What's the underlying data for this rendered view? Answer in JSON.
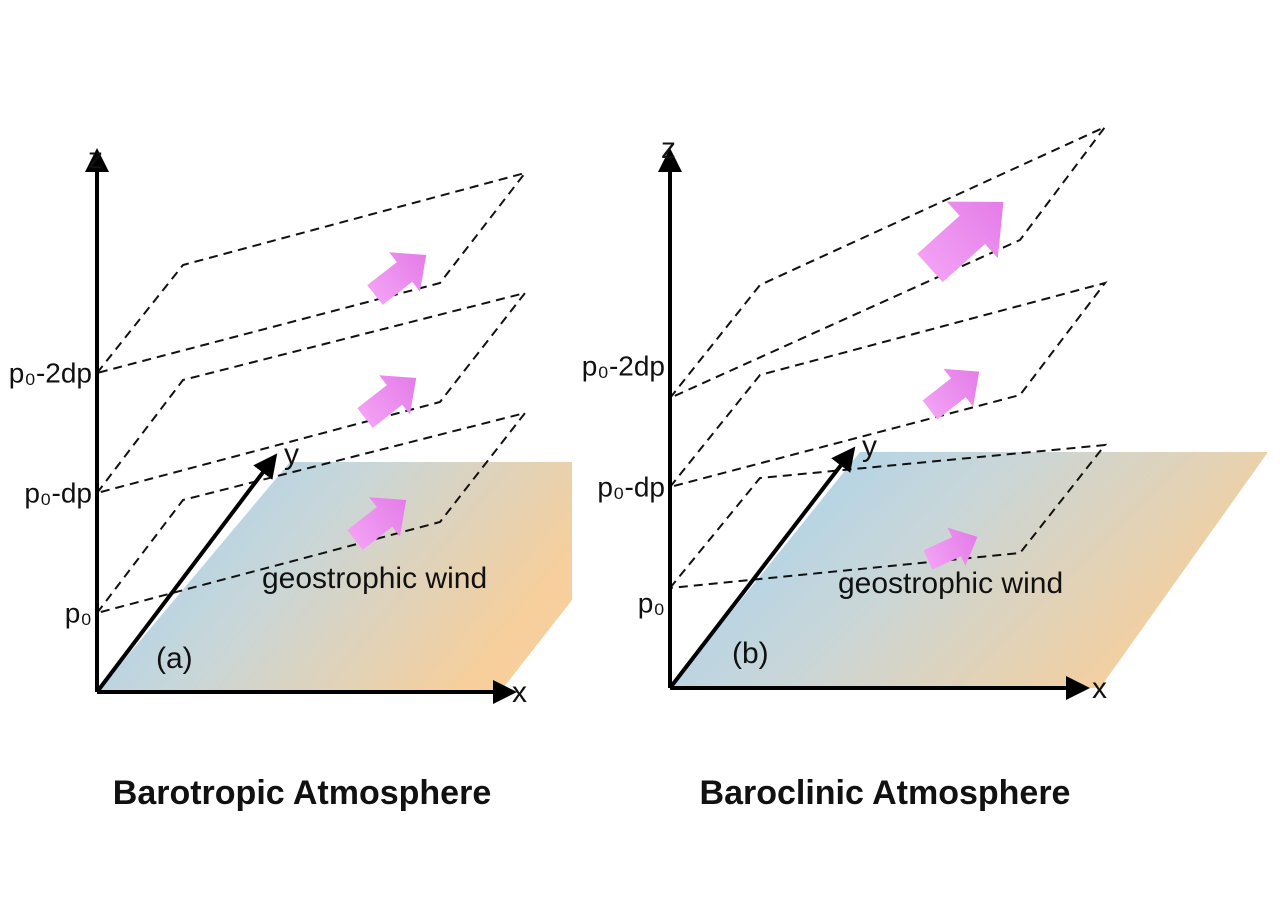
{
  "panels": [
    {
      "label": "(a)",
      "z_axis": "z",
      "y_axis": "y",
      "x_axis": "x",
      "levels": [
        "p₀",
        "p₀-dp",
        "p₀-2dp"
      ],
      "wind": "geostrophic wind",
      "title": "Barotropic Atmosphere"
    },
    {
      "label": "(b)",
      "z_axis": "z",
      "y_axis": "y",
      "x_axis": "x",
      "levels": [
        "p₀",
        "p₀-dp",
        "p₀-2dp"
      ],
      "wind": "geostrophic wind",
      "title": "Baroclinic Atmosphere"
    }
  ]
}
